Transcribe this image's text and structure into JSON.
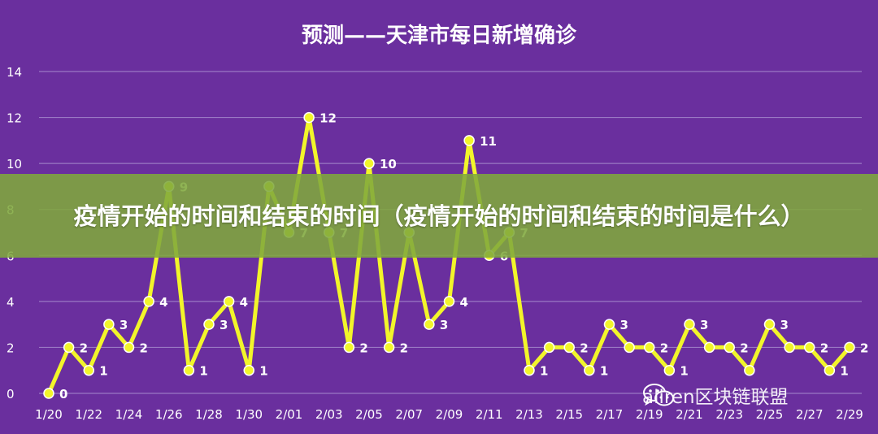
{
  "chart_data": {
    "type": "line",
    "title": "预测——天津市每日新增确诊",
    "x": [
      "1/20",
      "1/21",
      "1/22",
      "1/23",
      "1/24",
      "1/25",
      "1/26",
      "1/27",
      "1/28",
      "1/29",
      "1/30",
      "1/31",
      "2/01",
      "2/02",
      "2/03",
      "2/04",
      "2/05",
      "2/06",
      "2/07",
      "2/08",
      "2/09",
      "2/10",
      "2/11",
      "2/12",
      "2/13",
      "2/14",
      "2/15",
      "2/16",
      "2/17",
      "2/18",
      "2/19",
      "2/20",
      "2/21",
      "2/22",
      "2/23",
      "2/24",
      "2/25",
      "2/26",
      "2/27",
      "2/28",
      "2/29"
    ],
    "x_tick_labels": [
      "1/20",
      "1/22",
      "1/24",
      "1/26",
      "1/28",
      "1/30",
      "2/01",
      "2/03",
      "2/05",
      "2/07",
      "2/09",
      "2/11",
      "2/13",
      "2/15",
      "2/17",
      "2/19",
      "2/21",
      "2/23",
      "2/25",
      "2/27",
      "2/29"
    ],
    "values": [
      0,
      2,
      1,
      3,
      2,
      4,
      9,
      1,
      3,
      4,
      1,
      9,
      7,
      12,
      7,
      2,
      10,
      2,
      7,
      3,
      4,
      11,
      6,
      7,
      1,
      2,
      2,
      1,
      3,
      2,
      2,
      1,
      3,
      2,
      2,
      1,
      3,
      2,
      2,
      1,
      2
    ],
    "labels": [
      "0",
      "2",
      "1",
      "3",
      "2",
      "4",
      "9",
      "1",
      "3",
      "4",
      "1",
      "",
      "7",
      "12",
      "7",
      "2",
      "10",
      "2",
      "",
      "3",
      "4",
      "11",
      "6",
      "7",
      "1",
      "",
      "2",
      "1",
      "3",
      "",
      "2",
      "1",
      "3",
      "",
      "2",
      "",
      "3",
      "",
      "2",
      "1",
      "2"
    ],
    "ylim": [
      0,
      14
    ],
    "yticks": [
      0,
      2,
      4,
      6,
      8,
      10,
      12,
      14
    ],
    "grid": true,
    "legend": "none",
    "line_color": "#f2f52a",
    "background_color": "#6a2f9e"
  },
  "overlay": {
    "headline": "疫情开始的时间和结束的时间（疫情开始的时间和结束的时间是什么）",
    "watermark": "aliren区块链联盟",
    "icon": "wechat-icon"
  }
}
